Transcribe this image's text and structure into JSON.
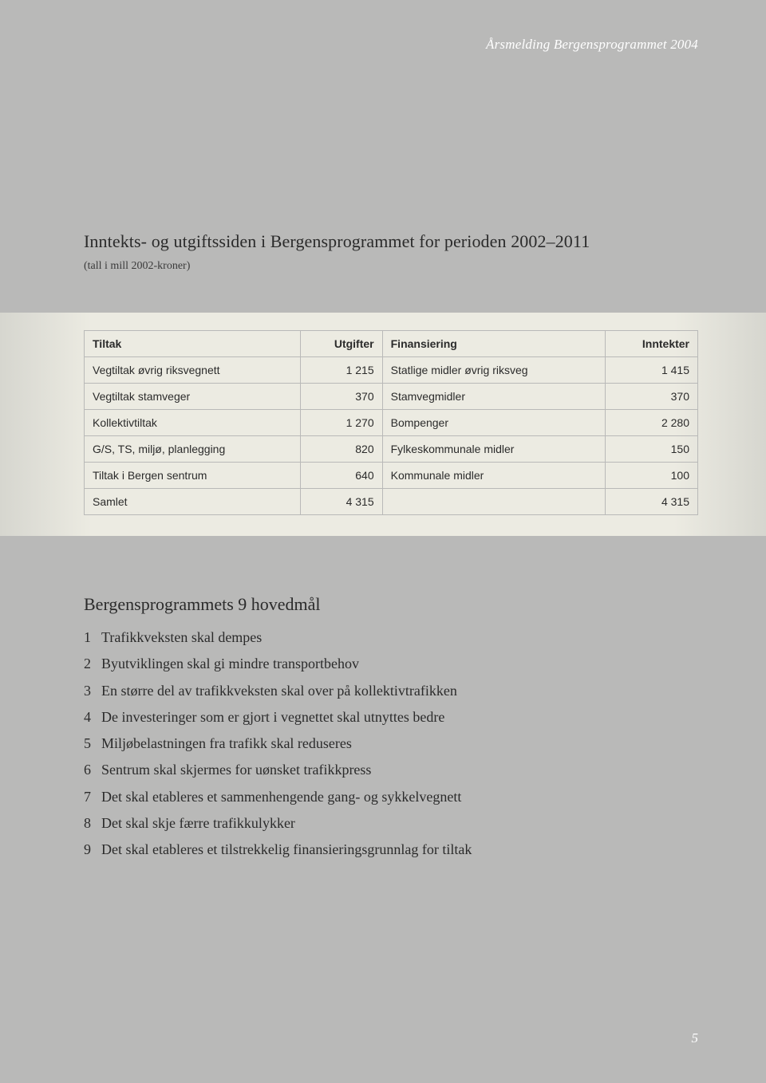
{
  "header": "Årsmelding Bergensprogrammet 2004",
  "title": "Inntekts- og utgiftssiden i Bergensprogrammet for perioden 2002–2011",
  "subtitle": "(tall i mill 2002-kroner)",
  "table": {
    "headers": {
      "c1": "Tiltak",
      "c2": "Utgifter",
      "c3": "Finansiering",
      "c4": "Inntekter"
    },
    "rows": [
      {
        "c1": "Vegtiltak øvrig riksvegnett",
        "c2": "1 215",
        "c3": "Statlige midler øvrig riksveg",
        "c4": "1 415"
      },
      {
        "c1": "Vegtiltak stamveger",
        "c2": "370",
        "c3": "Stamvegmidler",
        "c4": "370"
      },
      {
        "c1": "Kollektivtiltak",
        "c2": "1 270",
        "c3": "Bompenger",
        "c4": "2 280"
      },
      {
        "c1": "G/S, TS, miljø, planlegging",
        "c2": "820",
        "c3": "Fylkeskommunale midler",
        "c4": "150"
      },
      {
        "c1": "Tiltak i Bergen sentrum",
        "c2": "640",
        "c3": "Kommunale midler",
        "c4": "100"
      },
      {
        "c1": "Samlet",
        "c2": "4 315",
        "c3": "",
        "c4": "4 315"
      }
    ]
  },
  "goals_title": "Bergensprogrammets 9 hovedmål",
  "goals": [
    {
      "n": "1",
      "t": "Trafikkveksten skal dempes"
    },
    {
      "n": "2",
      "t": "Byutviklingen skal gi mindre transportbehov"
    },
    {
      "n": "3",
      "t": "En større del av trafikkveksten skal over på kollektivtrafikken"
    },
    {
      "n": "4",
      "t": "De investeringer som er gjort i vegnettet skal utnyttes bedre"
    },
    {
      "n": "5",
      "t": "Miljøbelastningen fra trafikk skal reduseres"
    },
    {
      "n": "6",
      "t": "Sentrum skal skjermes for uønsket trafikkpress"
    },
    {
      "n": "7",
      "t": "Det skal etableres et sammenhengende gang- og sykkelvegnett"
    },
    {
      "n": "8",
      "t": "Det skal skje færre trafikkulykker"
    },
    {
      "n": "9",
      "t": "Det skal etableres et tilstrekkelig finansieringsgrunnlag for tiltak"
    }
  ],
  "page_number": "5",
  "colors": {
    "page_bg": "#b9b9b8",
    "panel_center": "#ecebe2",
    "panel_edge": "#d6d6cf",
    "border": "#b9b9b8",
    "text": "#2b2b2b",
    "header_text": "#ffffff"
  }
}
